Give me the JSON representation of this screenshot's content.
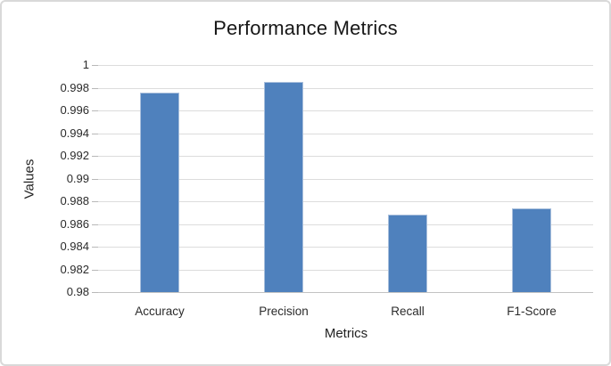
{
  "chart_data": {
    "type": "bar",
    "title": "Performance Metrics",
    "xlabel": "Metrics",
    "ylabel": "Values",
    "categories": [
      "Accuracy",
      "Precision",
      "Recall",
      "F1-Score"
    ],
    "values": [
      0.9976,
      0.9985,
      0.9868,
      0.9874
    ],
    "ylim": [
      0.98,
      1.0
    ],
    "ytick_step": 0.002,
    "ytick_labels": [
      "1",
      "0.998",
      "0.996",
      "0.994",
      "0.992",
      "0.99",
      "0.988",
      "0.986",
      "0.984",
      "0.982",
      "0.98"
    ],
    "grid": true,
    "legend_shown": false,
    "colors": {
      "bar_fill": "#4f81bd",
      "bar_edge": "#a9bfdc",
      "gridline": "#dcdcdc",
      "tick_mark": "#b8b8b8",
      "axis_line": "#c3c3c3",
      "text": "#262626",
      "frame_border": "#d9d9d9",
      "background": "#ffffff"
    }
  }
}
